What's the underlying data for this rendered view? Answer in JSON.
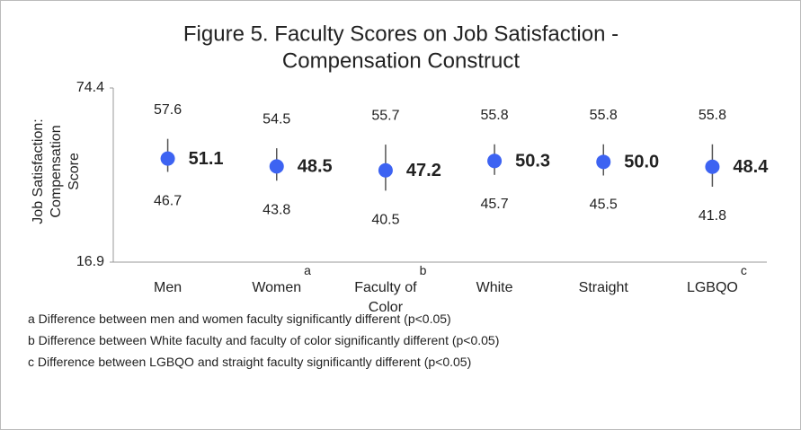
{
  "chart_data": {
    "type": "dot-range",
    "title": [
      "Figure 5. Faculty Scores on Job Satisfaction -",
      "Compensation Construct"
    ],
    "y_label": [
      "Job Satisfaction:",
      "Compensation",
      "Score"
    ],
    "categories": [
      "Men",
      "Women",
      "Faculty of Color",
      "White",
      "Straight",
      "LGBQO"
    ],
    "superscripts": [
      null,
      "a",
      "b",
      null,
      null,
      "c"
    ],
    "values": [
      51.1,
      48.5,
      47.2,
      50.3,
      50.0,
      48.4
    ],
    "value_labels": [
      "51.1",
      "48.5",
      "47.2",
      "50.3",
      "50.0",
      "48.4"
    ],
    "upper": [
      57.6,
      54.5,
      55.7,
      55.8,
      55.8,
      55.8
    ],
    "lower": [
      46.7,
      43.8,
      40.5,
      45.7,
      45.5,
      41.8
    ],
    "color": "#3d63f2",
    "bar_color": "#555555",
    "ylim": [
      16.9,
      74.4
    ],
    "yticks": [
      16.9,
      74.4
    ],
    "grid": false,
    "footnotes": [
      "a Difference between men and women faculty significantly different (p<0.05)",
      "b Difference between White faculty and faculty of color significantly different (p<0.05)",
      "c Difference between LGBQO and straight faculty significantly different (p<0.05)"
    ]
  }
}
